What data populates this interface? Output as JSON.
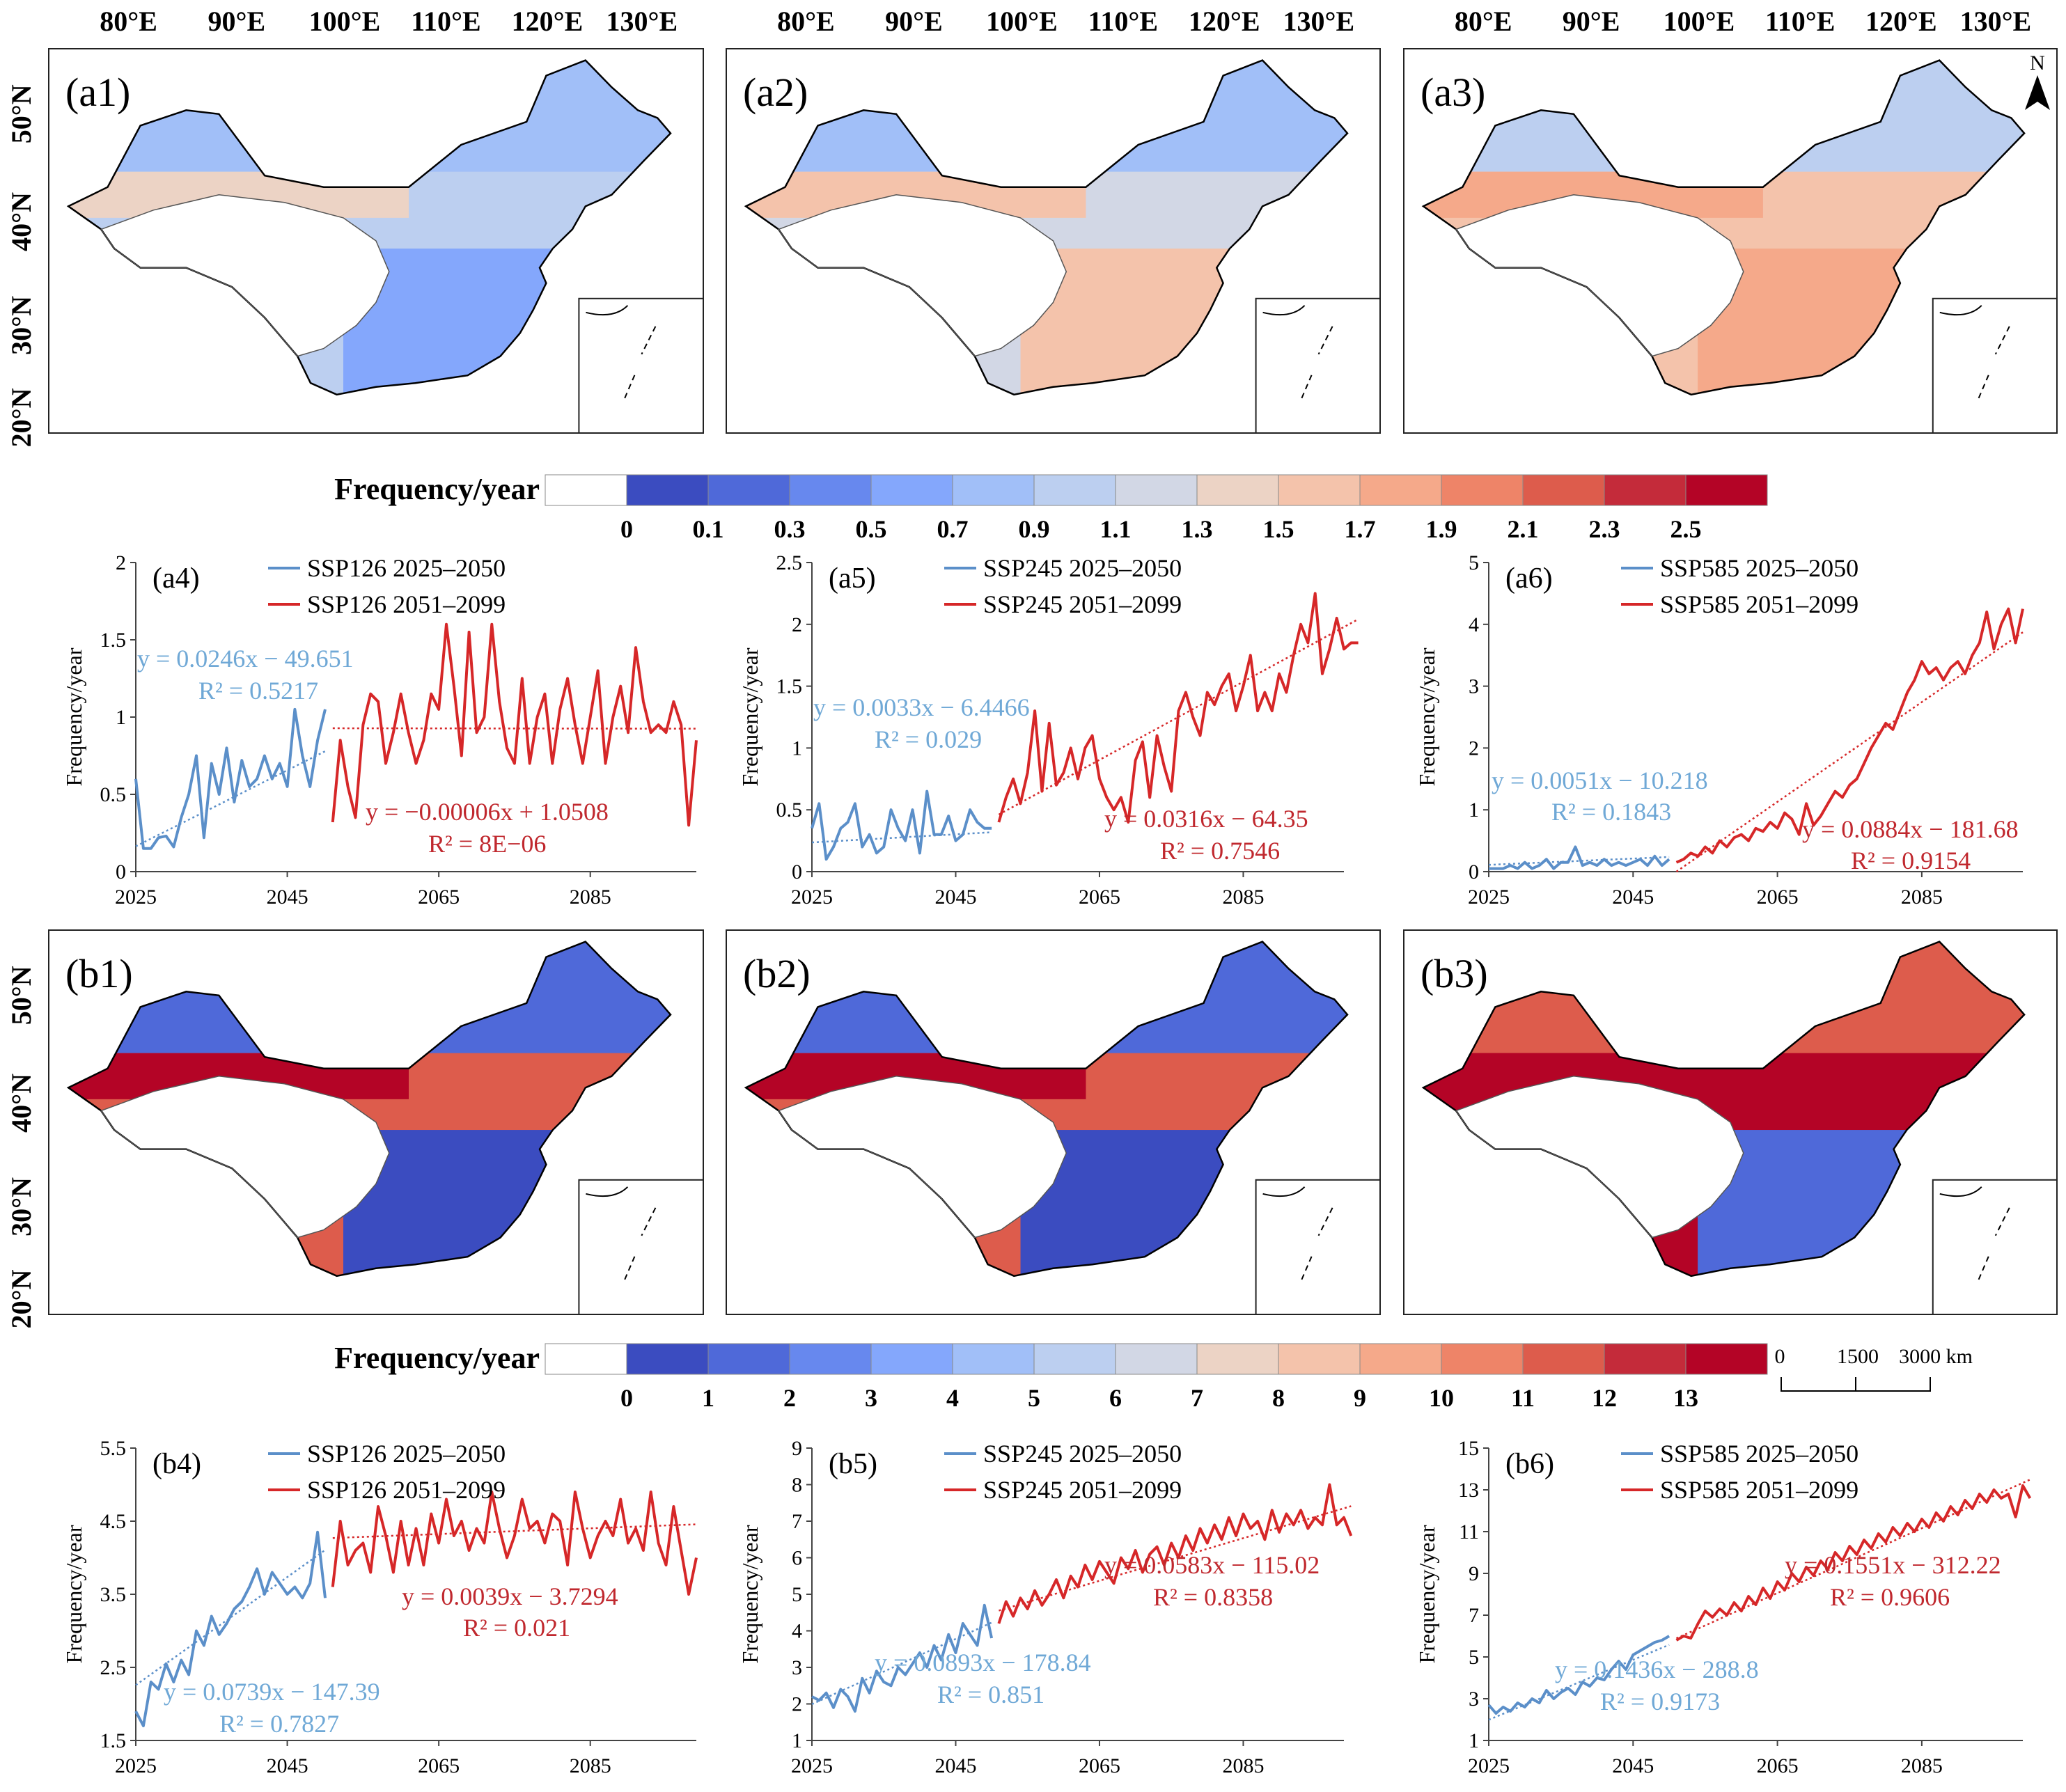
{
  "lon_labels": [
    "80°E",
    "90°E",
    "100°E",
    "110°E",
    "120°E",
    "130°E"
  ],
  "lat_labels": [
    "50°N",
    "40°N",
    "30°N",
    "20°N"
  ],
  "map_labels": [
    "(a1)",
    "(a2)",
    "(a3)",
    "(b1)",
    "(b2)",
    "(b3)"
  ],
  "north_label": "N",
  "scale_bar": {
    "labels": [
      "0",
      "1500",
      "3000 km"
    ]
  },
  "colorbars": [
    {
      "title": "Frequency/year",
      "ticks": [
        "0",
        "0.1",
        "0.3",
        "0.5",
        "0.7",
        "0.9",
        "1.1",
        "1.3",
        "1.5",
        "1.7",
        "1.9",
        "2.1",
        "2.3",
        "2.5"
      ],
      "colors": [
        "#ffffff",
        "#3b4cc0",
        "#4f69d9",
        "#6788ee",
        "#84a7fc",
        "#a1bff8",
        "#bccff0",
        "#d2d7e5",
        "#ecd3c5",
        "#f4c3ab",
        "#f5a98a",
        "#ee8468",
        "#dd5c4c",
        "#c42b3a",
        "#b40426"
      ]
    },
    {
      "title": "Frequency/year",
      "ticks": [
        "0",
        "1",
        "2",
        "3",
        "4",
        "5",
        "6",
        "7",
        "8",
        "9",
        "10",
        "11",
        "12",
        "13"
      ],
      "colors": [
        "#ffffff",
        "#3b4cc0",
        "#4f69d9",
        "#6788ee",
        "#84a7fc",
        "#a1bff8",
        "#bccff0",
        "#d2d7e5",
        "#ecd3c5",
        "#f4c3ab",
        "#f5a98a",
        "#ee8468",
        "#dd5c4c",
        "#c42b3a",
        "#b40426"
      ]
    }
  ],
  "colors": {
    "early": "#5b8fc9",
    "late": "#d62728",
    "early_eq": "#6fa8d6",
    "late_eq": "#c0282e"
  },
  "chart_data": [
    {
      "type": "line",
      "label": "(a4)",
      "ylabel": "Frequency/year",
      "xlim": [
        2025,
        2099
      ],
      "ylim": [
        0,
        2
      ],
      "xticks": [
        2025,
        2045,
        2065,
        2085
      ],
      "yticks": [
        0,
        0.5,
        1,
        1.5,
        2
      ],
      "ytick_labels": [
        "0",
        "0.5",
        "1",
        "1.5",
        "2"
      ],
      "series": [
        {
          "name": "SSP126 2025–2050",
          "x0": 2025,
          "values": [
            0.6,
            0.15,
            0.15,
            0.22,
            0.23,
            0.16,
            0.35,
            0.5,
            0.75,
            0.22,
            0.7,
            0.5,
            0.8,
            0.45,
            0.72,
            0.55,
            0.6,
            0.75,
            0.6,
            0.7,
            0.55,
            1.05,
            0.75,
            0.55,
            0.85,
            1.05
          ],
          "trend": {
            "slope": 0.0246,
            "intercept": -49.651,
            "equation": "y = 0.0246x − 49.651",
            "r2": "R² = 0.5217"
          }
        },
        {
          "name": "SSP126 2051–2099",
          "x0": 2051,
          "values": [
            0.32,
            0.85,
            0.55,
            0.35,
            0.95,
            1.15,
            1.1,
            0.7,
            0.9,
            1.15,
            0.9,
            0.7,
            0.85,
            1.15,
            1.05,
            1.6,
            1.2,
            0.75,
            1.55,
            0.9,
            1.0,
            1.6,
            1.1,
            0.8,
            0.7,
            1.25,
            0.7,
            1.0,
            1.15,
            0.7,
            1.05,
            1.25,
            0.95,
            0.7,
            1.0,
            1.3,
            0.7,
            1.0,
            1.2,
            0.9,
            1.45,
            1.1,
            0.9,
            0.95,
            0.9,
            1.1,
            0.95,
            0.3,
            0.85
          ],
          "trend": {
            "slope": -6e-05,
            "intercept": 1.0508,
            "equation": "y = −0.00006x + 1.0508",
            "r2": "R² = 8E−06"
          }
        }
      ]
    },
    {
      "type": "line",
      "label": "(a5)",
      "ylabel": "Frequency/year",
      "xlim": [
        2025,
        2099
      ],
      "ylim": [
        0,
        2.5
      ],
      "xticks": [
        2025,
        2045,
        2065,
        2085
      ],
      "yticks": [
        0,
        0.5,
        1,
        1.5,
        2,
        2.5
      ],
      "ytick_labels": [
        "0",
        "0.5",
        "1",
        "1.5",
        "2",
        "2.5"
      ],
      "series": [
        {
          "name": "SSP245 2025–2050",
          "x0": 2025,
          "values": [
            0.35,
            0.55,
            0.1,
            0.2,
            0.35,
            0.4,
            0.55,
            0.2,
            0.3,
            0.15,
            0.2,
            0.5,
            0.35,
            0.25,
            0.5,
            0.15,
            0.65,
            0.3,
            0.3,
            0.45,
            0.25,
            0.3,
            0.5,
            0.4,
            0.35,
            0.35
          ],
          "trend": {
            "slope": 0.0033,
            "intercept": -6.4466,
            "equation": "y = 0.0033x − 6.4466",
            "r2": "R² = 0.029"
          }
        },
        {
          "name": "SSP245 2051–2099",
          "x0": 2051,
          "values": [
            0.4,
            0.6,
            0.75,
            0.55,
            0.8,
            1.3,
            0.65,
            1.2,
            0.7,
            0.8,
            1.0,
            0.75,
            1.0,
            1.1,
            0.75,
            0.6,
            0.5,
            0.6,
            0.4,
            0.9,
            1.05,
            0.6,
            1.1,
            0.85,
            0.65,
            1.3,
            1.45,
            1.25,
            1.1,
            1.45,
            1.35,
            1.5,
            1.6,
            1.3,
            1.5,
            1.75,
            1.3,
            1.45,
            1.3,
            1.6,
            1.45,
            1.75,
            2.0,
            1.85,
            2.25,
            1.6,
            1.8,
            2.05,
            1.8,
            1.85,
            1.85
          ],
          "trend": {
            "slope": 0.0316,
            "intercept": -64.35,
            "equation": "y = 0.0316x − 64.35",
            "r2": "R² = 0.7546"
          }
        }
      ]
    },
    {
      "type": "line",
      "label": "(a6)",
      "ylabel": "Frequency/year",
      "xlim": [
        2025,
        2099
      ],
      "ylim": [
        0,
        5
      ],
      "xticks": [
        2025,
        2045,
        2065,
        2085
      ],
      "yticks": [
        0,
        1,
        2,
        3,
        4,
        5
      ],
      "ytick_labels": [
        "0",
        "1",
        "2",
        "3",
        "4",
        "5"
      ],
      "series": [
        {
          "name": "SSP585 2025–2050",
          "x0": 2025,
          "values": [
            0.05,
            0.05,
            0.05,
            0.1,
            0.05,
            0.15,
            0.05,
            0.1,
            0.2,
            0.05,
            0.15,
            0.15,
            0.4,
            0.1,
            0.15,
            0.1,
            0.2,
            0.1,
            0.15,
            0.1,
            0.15,
            0.2,
            0.1,
            0.25,
            0.1,
            0.2
          ],
          "trend": {
            "slope": 0.0051,
            "intercept": -10.218,
            "equation": "y = 0.0051x − 10.218",
            "r2": "R² = 0.1843"
          }
        },
        {
          "name": "SSP585 2051–2099",
          "x0": 2051,
          "values": [
            0.15,
            0.2,
            0.3,
            0.25,
            0.4,
            0.3,
            0.5,
            0.4,
            0.55,
            0.6,
            0.5,
            0.7,
            0.65,
            0.8,
            0.7,
            0.95,
            0.85,
            0.6,
            1.1,
            0.75,
            0.9,
            1.1,
            1.3,
            1.2,
            1.4,
            1.5,
            1.75,
            2.0,
            2.2,
            2.4,
            2.3,
            2.6,
            2.9,
            3.1,
            3.4,
            3.2,
            3.3,
            3.1,
            3.3,
            3.4,
            3.2,
            3.5,
            3.7,
            4.2,
            3.6,
            4.0,
            4.25,
            3.7,
            4.25
          ],
          "trend": {
            "slope": 0.0884,
            "intercept": -181.68,
            "equation": "y = 0.0884x − 181.68",
            "r2": "R² = 0.9154"
          }
        }
      ]
    },
    {
      "type": "line",
      "label": "(b4)",
      "ylabel": "Frequency/year",
      "xlim": [
        2025,
        2099
      ],
      "ylim": [
        1.5,
        5.5
      ],
      "xticks": [
        2025,
        2045,
        2065,
        2085
      ],
      "yticks": [
        1.5,
        2.5,
        3.5,
        4.5,
        5.5
      ],
      "ytick_labels": [
        "1.5",
        "2.5",
        "3.5",
        "4.5",
        "5.5"
      ],
      "series": [
        {
          "name": "SSP126 2025–2050",
          "x0": 2025,
          "values": [
            1.9,
            1.7,
            2.3,
            2.2,
            2.55,
            2.3,
            2.6,
            2.4,
            3.0,
            2.8,
            3.2,
            2.95,
            3.1,
            3.3,
            3.4,
            3.6,
            3.85,
            3.5,
            3.8,
            3.65,
            3.5,
            3.6,
            3.45,
            3.65,
            4.35,
            3.45
          ],
          "trend": {
            "slope": 0.0739,
            "intercept": -147.39,
            "equation": "y = 0.0739x − 147.39",
            "r2": "R² = 0.7827"
          }
        },
        {
          "name": "SSP126 2051–2099",
          "x0": 2051,
          "values": [
            3.6,
            4.5,
            3.9,
            4.1,
            4.2,
            3.8,
            4.7,
            4.3,
            3.8,
            4.5,
            3.9,
            4.4,
            3.9,
            4.6,
            4.2,
            4.8,
            4.3,
            4.5,
            4.1,
            4.4,
            4.2,
            4.9,
            4.4,
            4.0,
            4.3,
            4.8,
            4.4,
            4.5,
            4.2,
            4.6,
            4.5,
            3.9,
            4.9,
            4.4,
            4.0,
            4.3,
            4.5,
            4.3,
            4.8,
            4.2,
            4.4,
            4.1,
            4.9,
            4.2,
            3.9,
            4.7,
            4.1,
            3.5,
            4.0
          ],
          "trend": {
            "slope": 0.0039,
            "intercept": -3.7294,
            "equation": "y = 0.0039x − 3.7294",
            "r2": "R² = 0.021"
          }
        }
      ]
    },
    {
      "type": "line",
      "label": "(b5)",
      "ylabel": "Frequency/year",
      "xlim": [
        2025,
        2099
      ],
      "ylim": [
        1,
        9
      ],
      "xticks": [
        2025,
        2045,
        2065,
        2085
      ],
      "yticks": [
        1,
        2,
        3,
        4,
        5,
        6,
        7,
        8,
        9
      ],
      "ytick_labels": [
        "1",
        "2",
        "3",
        "4",
        "5",
        "6",
        "7",
        "8",
        "9"
      ],
      "series": [
        {
          "name": "SSP245 2025–2050",
          "x0": 2025,
          "values": [
            2.2,
            2.1,
            2.3,
            1.9,
            2.4,
            2.2,
            1.8,
            2.7,
            2.3,
            2.9,
            2.6,
            2.5,
            3.0,
            2.8,
            3.1,
            3.4,
            3.0,
            3.6,
            3.2,
            3.9,
            3.4,
            4.2,
            3.9,
            3.6,
            4.7,
            3.8
          ],
          "trend": {
            "slope": 0.0893,
            "intercept": -178.84,
            "equation": "y = 0.0893x − 178.84",
            "r2": "R² = 0.851"
          }
        },
        {
          "name": "SSP245 2051–2099",
          "x0": 2051,
          "values": [
            4.2,
            4.8,
            4.4,
            4.9,
            4.6,
            5.1,
            4.7,
            5.0,
            5.4,
            4.9,
            5.5,
            5.2,
            5.8,
            5.4,
            5.9,
            5.6,
            5.3,
            6.0,
            5.7,
            6.2,
            5.6,
            6.1,
            6.3,
            5.8,
            6.4,
            6.0,
            6.6,
            6.2,
            6.8,
            6.4,
            6.9,
            6.5,
            7.1,
            6.6,
            7.2,
            6.8,
            7.0,
            6.5,
            7.3,
            6.7,
            7.2,
            6.9,
            7.3,
            6.8,
            7.1,
            6.9,
            8.0,
            6.9,
            7.1,
            6.6
          ],
          "trend": {
            "slope": 0.0583,
            "intercept": -115.02,
            "equation": "y = 0.0583x − 115.02",
            "r2": "R² = 0.8358"
          }
        }
      ]
    },
    {
      "type": "line",
      "label": "(b6)",
      "ylabel": "Frequency/year",
      "xlim": [
        2025,
        2099
      ],
      "ylim": [
        1,
        15
      ],
      "xticks": [
        2025,
        2045,
        2065,
        2085
      ],
      "yticks": [
        1,
        3,
        5,
        7,
        9,
        11,
        13,
        15
      ],
      "ytick_labels": [
        "1",
        "3",
        "5",
        "7",
        "9",
        "11",
        "13",
        "15"
      ],
      "series": [
        {
          "name": "SSP585 2025–2050",
          "x0": 2025,
          "values": [
            2.7,
            2.3,
            2.6,
            2.4,
            2.8,
            2.6,
            3.0,
            2.8,
            3.4,
            3.0,
            3.3,
            3.5,
            3.2,
            3.8,
            3.6,
            4.0,
            3.9,
            4.4,
            4.8,
            4.4,
            5.1,
            5.3,
            5.5,
            5.7,
            5.8,
            6.0
          ],
          "trend": {
            "slope": 0.1436,
            "intercept": -288.8,
            "equation": "y = 0.1436x − 288.8",
            "r2": "R² = 0.9173"
          }
        },
        {
          "name": "SSP585 2051–2099",
          "x0": 2051,
          "values": [
            5.8,
            6.0,
            5.9,
            6.6,
            7.2,
            6.9,
            7.3,
            7.0,
            7.6,
            7.2,
            7.9,
            7.5,
            8.3,
            7.8,
            8.6,
            8.2,
            9.0,
            8.6,
            9.3,
            8.9,
            9.6,
            9.2,
            10.0,
            9.6,
            10.3,
            9.9,
            10.6,
            10.2,
            10.9,
            10.5,
            11.2,
            10.8,
            11.4,
            11.0,
            11.6,
            11.2,
            11.9,
            11.5,
            12.2,
            11.8,
            12.5,
            12.1,
            12.8,
            12.4,
            13.0,
            12.6,
            12.8,
            11.7,
            13.2,
            12.6
          ],
          "trend": {
            "slope": 0.1551,
            "intercept": -312.22,
            "equation": "y = 0.1551x − 312.22",
            "r2": "R² = 0.9606"
          }
        }
      ]
    }
  ]
}
